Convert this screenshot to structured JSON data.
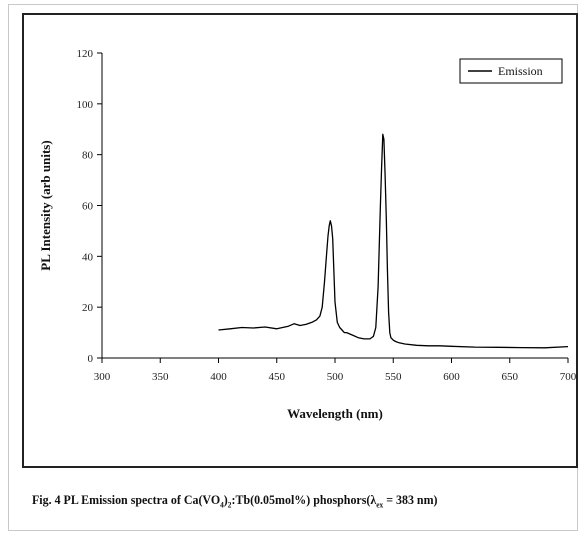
{
  "caption": {
    "prefix": "Fig. 4 PL Emission spectra of Ca(VO",
    "sub1": "4",
    "mid1": ")",
    "sub2": "2",
    "mid2": ":Tb(0.05mol%) phosphors(λ",
    "sub3": "ex",
    "suffix": " = 383 nm)"
  },
  "chart_data": {
    "type": "line",
    "xlabel": "Wavelength (nm)",
    "ylabel": "PL Intensity (arb units)",
    "xlim": [
      300,
      700
    ],
    "ylim": [
      0,
      120
    ],
    "xticks": [
      "300",
      "350",
      "400",
      "450",
      "500",
      "550",
      "600",
      "650",
      "700"
    ],
    "yticks": [
      "0",
      "20",
      "40",
      "60",
      "80",
      "100",
      "120"
    ],
    "legend": {
      "position": "top-right",
      "entries": [
        "Emission"
      ]
    },
    "series": [
      {
        "name": "Emission",
        "color": "#000000",
        "x": [
          400,
          410,
          420,
          430,
          440,
          450,
          460,
          465,
          470,
          475,
          480,
          484,
          487,
          489,
          491,
          493,
          494,
          495,
          496,
          497,
          498,
          499,
          500,
          502,
          504,
          506,
          508,
          510,
          515,
          520,
          525,
          530,
          533,
          535,
          537,
          539,
          540,
          541,
          542,
          543,
          544,
          545,
          546,
          547,
          548,
          550,
          552,
          555,
          560,
          570,
          580,
          590,
          600,
          620,
          640,
          660,
          680,
          700
        ],
        "y": [
          11,
          11.5,
          12,
          11.8,
          12.2,
          11.5,
          12.5,
          13.5,
          12.8,
          13.2,
          14,
          15,
          16.5,
          20,
          30,
          42,
          48,
          52,
          54,
          52,
          47,
          35,
          22,
          14,
          12,
          11,
          10,
          10,
          9,
          8,
          7.5,
          7.5,
          8.5,
          12,
          28,
          60,
          75,
          88,
          86,
          72,
          55,
          35,
          18,
          10,
          8,
          7,
          6.5,
          6,
          5.5,
          5,
          4.8,
          4.8,
          4.6,
          4.3,
          4.2,
          4.1,
          4,
          4.5
        ]
      }
    ]
  }
}
